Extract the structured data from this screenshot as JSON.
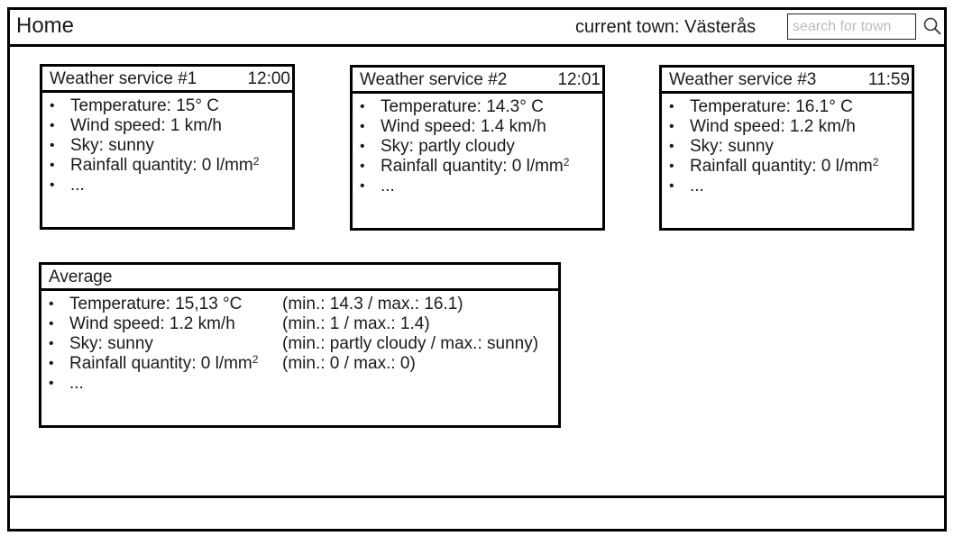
{
  "header": {
    "title": "Home",
    "current_town": "current town: Västerås",
    "search_placeholder": "search for town"
  },
  "services": [
    {
      "name": "Weather service #1",
      "time": "12:00",
      "temperature": "Temperature: 15° C",
      "wind": "Wind speed: 1 km/h",
      "sky": "Sky: sunny",
      "rain": "Rainfall quantity: 0 l/mm",
      "more": "..."
    },
    {
      "name": "Weather service #2",
      "time": "12:01",
      "temperature": "Temperature: 14.3° C",
      "wind": "Wind speed: 1.4 km/h",
      "sky": "Sky: partly cloudy",
      "rain": "Rainfall quantity: 0 l/mm",
      "more": "..."
    },
    {
      "name": "Weather service #3",
      "time": "11:59",
      "temperature": "Temperature: 16.1° C",
      "wind": "Wind speed: 1.2 km/h",
      "sky": "Sky: sunny",
      "rain": "Rainfall quantity: 0 l/mm",
      "more": "..."
    }
  ],
  "average": {
    "title": "Average",
    "rows": [
      {
        "value": "Temperature: 15,13 °C",
        "range": "(min.: 14.3 / max.: 16.1)"
      },
      {
        "value": "Wind speed: 1.2 km/h",
        "range": "(min.: 1 / max.: 1.4)"
      },
      {
        "value": "Sky: sunny",
        "range": "(min.: partly cloudy / max.: sunny)"
      },
      {
        "value": "Rainfall quantity: 0 l/mm",
        "range": "(min.: 0 / max.: 0)"
      },
      {
        "value": "...",
        "range": ""
      }
    ],
    "superscript": "2"
  }
}
